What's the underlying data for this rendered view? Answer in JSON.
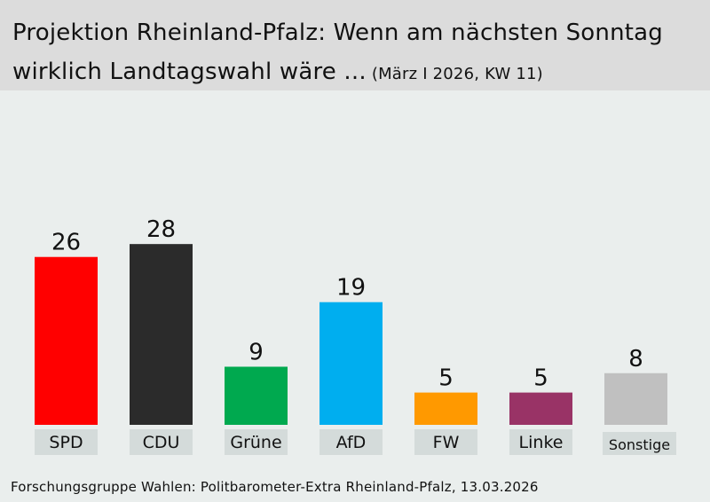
{
  "header": {
    "title_line1": "Projektion Rheinland-Pfalz: Wenn am nächsten Sonntag",
    "title_line2": "wirklich Landtagswahl wäre ...",
    "subtitle": "(März I 2026, KW 11)"
  },
  "footer": {
    "source": "Forschungsgruppe  Wahlen: Politbarometer-Extra Rheinland-Pfalz, 13.03.2026"
  },
  "chart_data": {
    "type": "bar",
    "title": "Projektion Rheinland-Pfalz: Wenn am nächsten Sonntag wirklich Landtagswahl wäre ... (März I 2026, KW 11)",
    "xlabel": "",
    "ylabel": "",
    "ylim": [
      0,
      30
    ],
    "grid": false,
    "categories": [
      "SPD",
      "CDU",
      "Grüne",
      "AfD",
      "FW",
      "Linke",
      "Sonstige"
    ],
    "values": [
      26,
      28,
      9,
      19,
      5,
      5,
      8
    ],
    "colors": [
      "#ff0000",
      "#2b2b2b",
      "#00a94f",
      "#00aeef",
      "#ff9900",
      "#993366",
      "#c0c0c0"
    ],
    "label_box_color": "#d4dbda"
  }
}
